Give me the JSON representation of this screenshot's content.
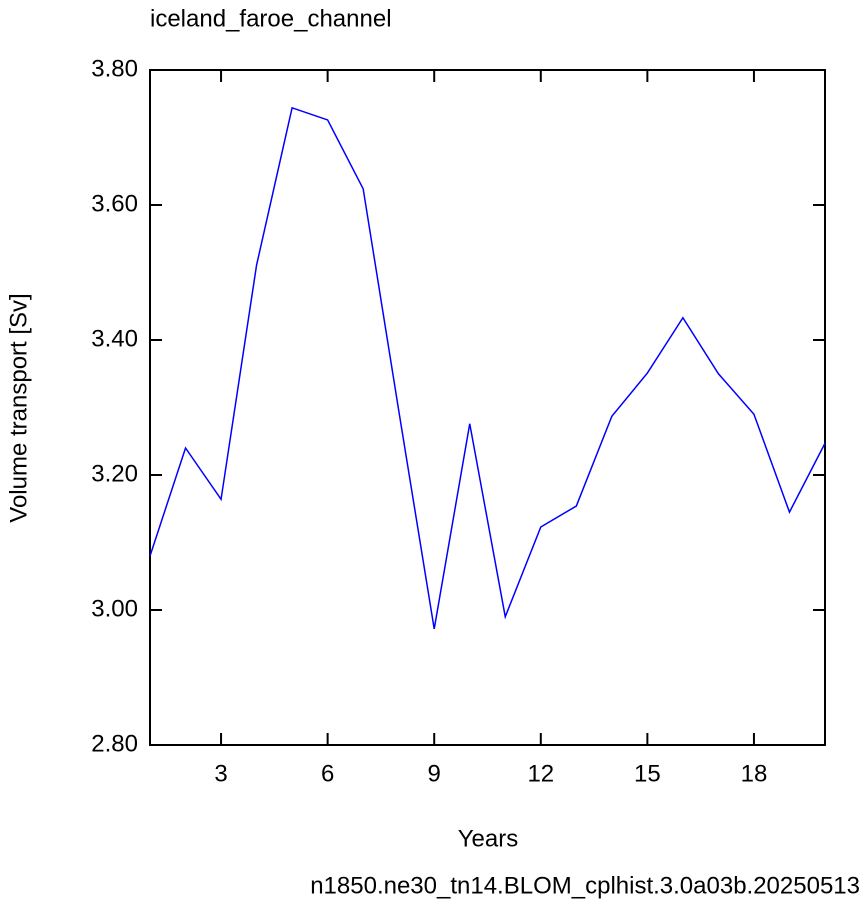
{
  "chart_data": {
    "type": "line",
    "title": "iceland_faroe_channel",
    "subtitle": "n1850.ne30_tn14.BLOM_cplhist.3.0a03b.20250513",
    "x_label": "Years",
    "y_label": "Volume transport [Sv]",
    "x": [
      1,
      2,
      3,
      4,
      5,
      6,
      7,
      8,
      9,
      10,
      11,
      12,
      13,
      14,
      15,
      16,
      17,
      18,
      19,
      20
    ],
    "series": [
      {
        "name": "iceland_faroe_channel",
        "color": "#0000ff",
        "values": [
          3.08,
          3.24,
          3.164,
          3.511,
          3.744,
          3.726,
          3.624,
          3.296,
          2.972,
          3.276,
          2.99,
          3.123,
          3.154,
          3.287,
          3.351,
          3.433,
          3.35,
          3.29,
          3.145,
          3.247
        ]
      }
    ],
    "xlim": [
      1,
      20
    ],
    "xticks": [
      3,
      6,
      9,
      12,
      15,
      18
    ],
    "ylim": [
      2.8,
      3.8
    ],
    "yticks": [
      {
        "value": 2.8,
        "label": "2.80"
      },
      {
        "value": 3.0,
        "label": "3.00"
      },
      {
        "value": 3.2,
        "label": "3.20"
      },
      {
        "value": 3.4,
        "label": "3.40"
      },
      {
        "value": 3.6,
        "label": "3.60"
      },
      {
        "value": 3.8,
        "label": "3.80"
      }
    ],
    "subtitle_color": "#0000ff"
  }
}
